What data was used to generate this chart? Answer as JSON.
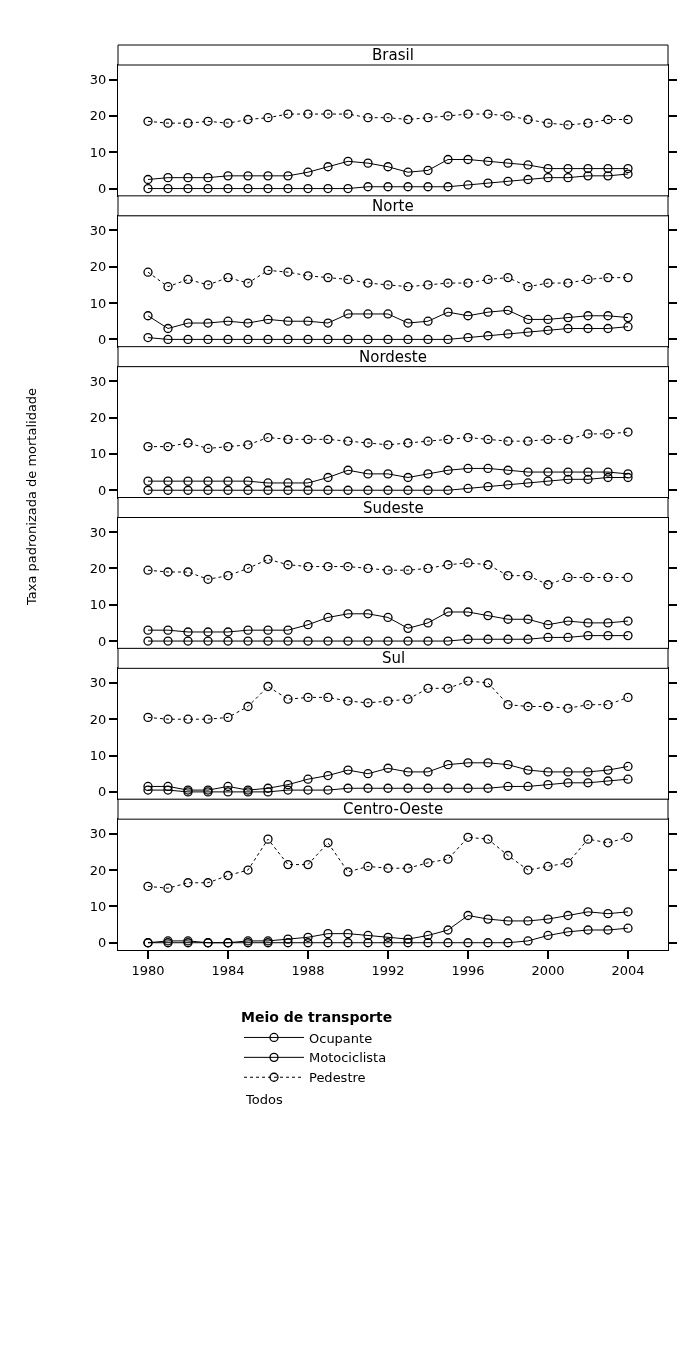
{
  "chart_data": [
    {
      "type": "line",
      "title": "Brasil",
      "marker": "circle",
      "xlim": [
        1978.5,
        2006
      ],
      "xticks": [
        1980,
        1984,
        1988,
        1992,
        1996,
        2000,
        2004
      ],
      "ylim": [
        -2,
        34
      ],
      "yticks": [
        0,
        10,
        20,
        30
      ],
      "tick_labels": "y",
      "x": [
        1980,
        1981,
        1982,
        1983,
        1984,
        1985,
        1986,
        1987,
        1988,
        1989,
        1990,
        1991,
        1992,
        1993,
        1994,
        1995,
        1996,
        1997,
        1998,
        1999,
        2000,
        2001,
        2002,
        2003,
        2004
      ],
      "series": [
        {
          "color": "#000000",
          "line_style": "solid",
          "values": [
            2.5,
            3,
            3,
            3,
            3.5,
            3.5,
            3.5,
            3.5,
            4.5,
            6,
            7.5,
            7,
            6,
            4.5,
            5,
            8,
            8,
            7.5,
            7,
            6.5,
            5.5,
            5.5,
            5.5,
            5.5,
            5.5
          ]
        },
        {
          "color": "#000000",
          "line_style": "solid",
          "values": [
            0,
            0,
            0,
            0,
            0,
            0,
            0,
            0,
            0,
            0,
            0,
            0.5,
            0.5,
            0.5,
            0.5,
            0.5,
            1,
            1.5,
            2,
            2.5,
            3,
            3,
            3.5,
            3.5,
            4
          ]
        },
        {
          "color": "#000000",
          "line_style": "dotted",
          "values": [
            18.5,
            18,
            18,
            18.5,
            18,
            19,
            19.5,
            20.5,
            20.5,
            20.5,
            20.5,
            19.5,
            19.5,
            19,
            19.5,
            20,
            20.5,
            20.5,
            20,
            19,
            18,
            17.5,
            18,
            19,
            19
          ]
        }
      ]
    },
    {
      "type": "line",
      "title": "Norte",
      "marker": "circle",
      "xlim": [
        1978.5,
        2006
      ],
      "xticks": [
        1980,
        1984,
        1988,
        1992,
        1996,
        2000,
        2004
      ],
      "ylim": [
        -2,
        34
      ],
      "yticks": [
        0,
        10,
        20,
        30
      ],
      "tick_labels": "y",
      "x": [
        1980,
        1981,
        1982,
        1983,
        1984,
        1985,
        1986,
        1987,
        1988,
        1989,
        1990,
        1991,
        1992,
        1993,
        1994,
        1995,
        1996,
        1997,
        1998,
        1999,
        2000,
        2001,
        2002,
        2003,
        2004
      ],
      "series": [
        {
          "color": "#000000",
          "line_style": "solid",
          "values": [
            6.5,
            3,
            4.5,
            4.5,
            5,
            4.5,
            5.5,
            5,
            5,
            4.5,
            7,
            7,
            7,
            4.5,
            5,
            7.5,
            6.5,
            7.5,
            8,
            5.5,
            5.5,
            6,
            6.5,
            6.5,
            6
          ]
        },
        {
          "color": "#000000",
          "line_style": "solid",
          "values": [
            0.5,
            0,
            0,
            0,
            0,
            0,
            0,
            0,
            0,
            0,
            0,
            0,
            0,
            0,
            0,
            0,
            0.5,
            1,
            1.5,
            2,
            2.5,
            3,
            3,
            3,
            3.5
          ]
        },
        {
          "color": "#000000",
          "line_style": "dotted",
          "values": [
            18.5,
            14.5,
            16.5,
            15,
            17,
            15.5,
            19,
            18.5,
            17.5,
            17,
            16.5,
            15.5,
            15,
            14.5,
            15,
            15.5,
            15.5,
            16.5,
            17,
            14.5,
            15.5,
            15.5,
            16.5,
            17,
            17
          ]
        }
      ]
    },
    {
      "type": "line",
      "title": "Nordeste",
      "ylabel": "Taxa padronizada de mortalidade",
      "marker": "circle",
      "xlim": [
        1978.5,
        2006
      ],
      "xticks": [
        1980,
        1984,
        1988,
        1992,
        1996,
        2000,
        2004
      ],
      "ylim": [
        -2,
        34
      ],
      "yticks": [
        0,
        10,
        20,
        30
      ],
      "tick_labels": "y",
      "x": [
        1980,
        1981,
        1982,
        1983,
        1984,
        1985,
        1986,
        1987,
        1988,
        1989,
        1990,
        1991,
        1992,
        1993,
        1994,
        1995,
        1996,
        1997,
        1998,
        1999,
        2000,
        2001,
        2002,
        2003,
        2004
      ],
      "series": [
        {
          "color": "#000000",
          "line_style": "solid",
          "values": [
            2.5,
            2.5,
            2.5,
            2.5,
            2.5,
            2.5,
            2,
            2,
            2,
            3.5,
            5.5,
            4.5,
            4.5,
            3.5,
            4.5,
            5.5,
            6,
            6,
            5.5,
            5,
            5,
            5,
            5,
            5,
            4.5
          ]
        },
        {
          "color": "#000000",
          "line_style": "solid",
          "values": [
            0,
            0,
            0,
            0,
            0,
            0,
            0,
            0,
            0,
            0,
            0,
            0,
            0,
            0,
            0,
            0,
            0.5,
            1,
            1.5,
            2,
            2.5,
            3,
            3,
            3.5,
            3.5
          ]
        },
        {
          "color": "#000000",
          "line_style": "dotted",
          "values": [
            12,
            12,
            13,
            11.5,
            12,
            12.5,
            14.5,
            14,
            14,
            14,
            13.5,
            13,
            12.5,
            13,
            13.5,
            14,
            14.5,
            14,
            13.5,
            13.5,
            14,
            14,
            15.5,
            15.5,
            16
          ]
        }
      ]
    },
    {
      "type": "line",
      "title": "Sudeste",
      "marker": "circle",
      "xlim": [
        1978.5,
        2006
      ],
      "xticks": [
        1980,
        1984,
        1988,
        1992,
        1996,
        2000,
        2004
      ],
      "ylim": [
        -2,
        34
      ],
      "yticks": [
        0,
        10,
        20,
        30
      ],
      "tick_labels": "y",
      "x": [
        1980,
        1981,
        1982,
        1983,
        1984,
        1985,
        1986,
        1987,
        1988,
        1989,
        1990,
        1991,
        1992,
        1993,
        1994,
        1995,
        1996,
        1997,
        1998,
        1999,
        2000,
        2001,
        2002,
        2003,
        2004
      ],
      "series": [
        {
          "color": "#000000",
          "line_style": "solid",
          "values": [
            3,
            3,
            2.5,
            2.5,
            2.5,
            3,
            3,
            3,
            4.5,
            6.5,
            7.5,
            7.5,
            6.5,
            3.5,
            5,
            8,
            8,
            7,
            6,
            6,
            4.5,
            5.5,
            5,
            5,
            5.5
          ]
        },
        {
          "color": "#000000",
          "line_style": "solid",
          "values": [
            0,
            0,
            0,
            0,
            0,
            0,
            0,
            0,
            0,
            0,
            0,
            0,
            0,
            0,
            0,
            0,
            0.5,
            0.5,
            0.5,
            0.5,
            1,
            1,
            1.5,
            1.5,
            1.5
          ]
        },
        {
          "color": "#000000",
          "line_style": "dotted",
          "values": [
            19.5,
            19,
            19,
            17,
            18,
            20,
            22.5,
            21,
            20.5,
            20.5,
            20.5,
            20,
            19.5,
            19.5,
            20,
            21,
            21.5,
            21,
            18,
            18,
            15.5,
            17.5,
            17.5,
            17.5,
            17.5
          ]
        }
      ]
    },
    {
      "type": "line",
      "title": "Sul",
      "marker": "circle",
      "xlim": [
        1978.5,
        2006
      ],
      "xticks": [
        1980,
        1984,
        1988,
        1992,
        1996,
        2000,
        2004
      ],
      "ylim": [
        -2,
        34
      ],
      "yticks": [
        0,
        10,
        20,
        30
      ],
      "tick_labels": "y",
      "x": [
        1980,
        1981,
        1982,
        1983,
        1984,
        1985,
        1986,
        1987,
        1988,
        1989,
        1990,
        1991,
        1992,
        1993,
        1994,
        1995,
        1996,
        1997,
        1998,
        1999,
        2000,
        2001,
        2002,
        2003,
        2004
      ],
      "series": [
        {
          "color": "#000000",
          "line_style": "solid",
          "values": [
            1.5,
            1.5,
            0.5,
            0.5,
            1.5,
            0.5,
            1,
            2,
            3.5,
            4.5,
            6,
            5,
            6.5,
            5.5,
            5.5,
            7.5,
            8,
            8,
            7.5,
            6,
            5.5,
            5.5,
            5.5,
            6,
            7
          ]
        },
        {
          "color": "#000000",
          "line_style": "solid",
          "values": [
            0.5,
            0.5,
            0,
            0,
            0,
            0,
            0,
            0.5,
            0.5,
            0.5,
            1,
            1,
            1,
            1,
            1,
            1,
            1,
            1,
            1.5,
            1.5,
            2,
            2.5,
            2.5,
            3,
            3.5
          ]
        },
        {
          "color": "#000000",
          "line_style": "dotted",
          "values": [
            20.5,
            20,
            20,
            20,
            20.5,
            23.5,
            29,
            25.5,
            26,
            26,
            25,
            24.5,
            25,
            25.5,
            28.5,
            28.5,
            30.5,
            30,
            24,
            23.5,
            23.5,
            23,
            24,
            24,
            26
          ]
        }
      ]
    },
    {
      "type": "line",
      "title": "Centro-Oeste",
      "marker": "circle",
      "xlim": [
        1978.5,
        2006
      ],
      "xticks": [
        1980,
        1984,
        1988,
        1992,
        1996,
        2000,
        2004
      ],
      "ylim": [
        -2,
        34
      ],
      "yticks": [
        0,
        10,
        20,
        30
      ],
      "legend": "bottom",
      "legend_title": "Meio de transporte",
      "annotations": [
        "Todos"
      ],
      "x": [
        1980,
        1981,
        1982,
        1983,
        1984,
        1985,
        1986,
        1987,
        1988,
        1989,
        1990,
        1991,
        1992,
        1993,
        1994,
        1995,
        1996,
        1997,
        1998,
        1999,
        2000,
        2001,
        2002,
        2003,
        2004
      ],
      "series": [
        {
          "name": "Ocupante",
          "color": "#000000",
          "line_style": "solid",
          "values": [
            0,
            0.5,
            0.5,
            0,
            0,
            0.5,
            0.5,
            1,
            1.5,
            2.5,
            2.5,
            2,
            1.5,
            1,
            2,
            3.5,
            7.5,
            6.5,
            6,
            6,
            6.5,
            7.5,
            8.5,
            8,
            8.5
          ]
        },
        {
          "name": "Motociclista",
          "color": "#000000",
          "line_style": "solid",
          "values": [
            0,
            0,
            0,
            0,
            0,
            0,
            0,
            0,
            0,
            0,
            0,
            0,
            0,
            0,
            0,
            0,
            0,
            0,
            0,
            0.5,
            2,
            3,
            3.5,
            3.5,
            4
          ]
        },
        {
          "name": "Pedestre",
          "color": "#000000",
          "line_style": "dotted",
          "values": [
            15.5,
            15,
            16.5,
            16.5,
            18.5,
            20,
            28.5,
            21.5,
            21.5,
            27.5,
            19.5,
            21,
            20.5,
            20.5,
            22,
            23,
            29,
            28.5,
            24,
            20,
            21,
            22,
            28.5,
            27.5,
            29
          ]
        }
      ]
    }
  ]
}
